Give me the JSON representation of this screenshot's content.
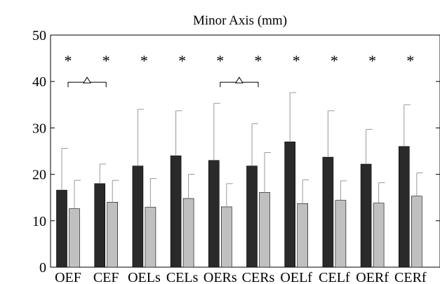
{
  "chart_data": {
    "type": "bar",
    "title": "Minor Axis (mm)",
    "xlabel": "",
    "ylabel": "",
    "ylim": [
      0,
      50
    ],
    "yticks": [
      0,
      10,
      20,
      30,
      40,
      50
    ],
    "grid": false,
    "categories": [
      "OEF",
      "CEF",
      "OELs",
      "CELs",
      "OERs",
      "CERs",
      "OELf",
      "CELf",
      "OERf",
      "CERf"
    ],
    "series": [
      {
        "color": "#2a2a2a",
        "values": [
          16.6,
          18.0,
          21.8,
          24.0,
          23.0,
          21.8,
          27.0,
          23.7,
          22.2,
          26.0
        ],
        "error_upper": [
          25.6,
          22.2,
          34.0,
          33.7,
          35.3,
          30.9,
          37.6,
          33.7,
          29.7,
          35.0
        ]
      },
      {
        "color": "#c0c0c0",
        "values": [
          12.6,
          14.0,
          12.9,
          14.8,
          13.0,
          16.1,
          13.7,
          14.4,
          13.8,
          15.3
        ],
        "error_upper": [
          18.7,
          18.7,
          19.1,
          20.0,
          18.0,
          24.7,
          18.8,
          18.6,
          18.2,
          20.3
        ]
      }
    ],
    "annotations": {
      "stars": {
        "symbol": "*",
        "y": 45,
        "categories": [
          "OEF",
          "CEF",
          "OELs",
          "CELs",
          "OERs",
          "CERs",
          "OELf",
          "CELf",
          "OERf",
          "CERf"
        ]
      },
      "brackets": [
        {
          "symbol": "△",
          "from": "OEF",
          "to": "CEF",
          "y": 40
        },
        {
          "symbol": "△",
          "from": "OERs",
          "to": "CERs",
          "y": 40
        }
      ]
    }
  }
}
